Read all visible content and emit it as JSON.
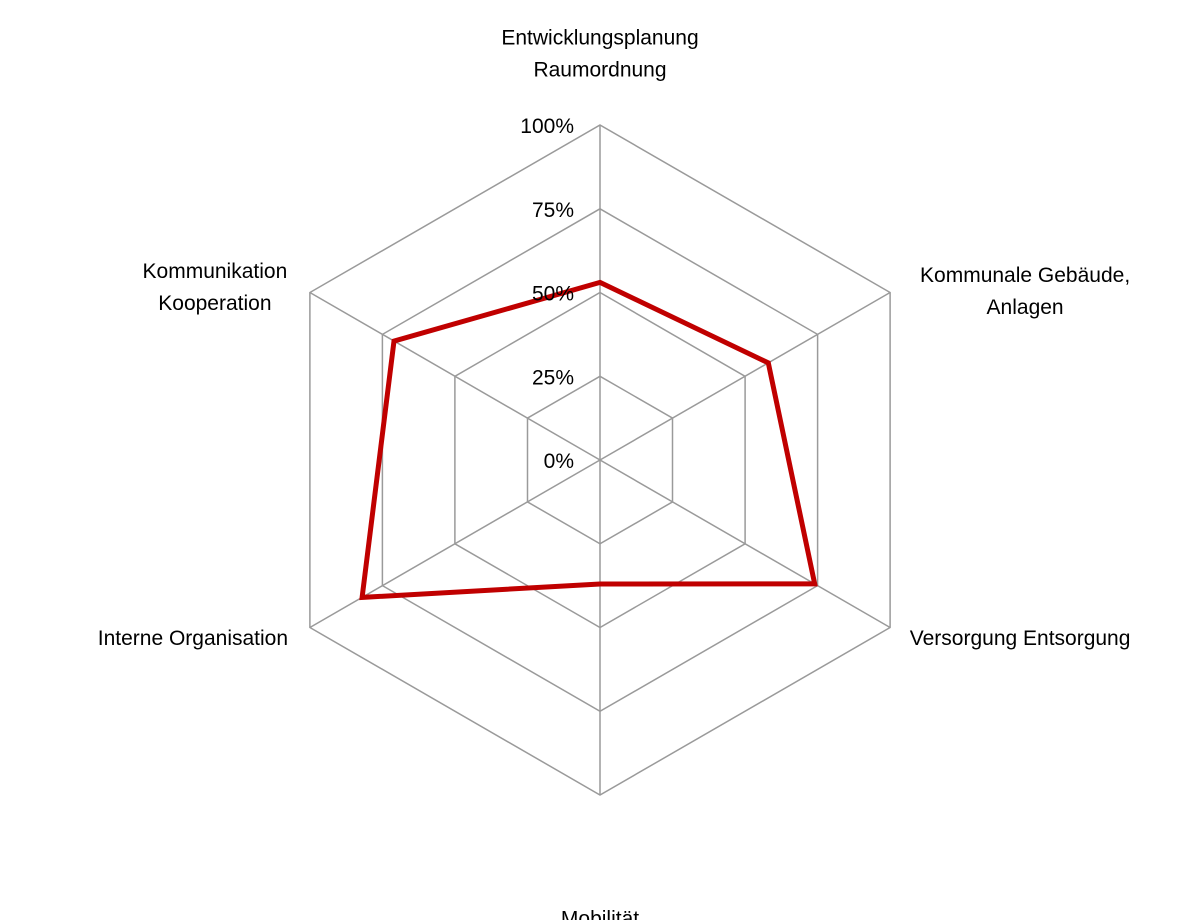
{
  "chart_data": {
    "type": "radar",
    "title": "",
    "axes": [
      [
        "Entwicklungsplanung",
        "Raumordnung"
      ],
      [
        "Kommunale Gebäude,",
        "Anlagen"
      ],
      [
        "Versorgung Entsorgung"
      ],
      [
        "Mobilität"
      ],
      [
        "Interne Organisation"
      ],
      [
        "Kommunikation",
        "Kooperation"
      ]
    ],
    "ticks": [
      "0%",
      "25%",
      "50%",
      "75%",
      "100%"
    ],
    "range": [
      0,
      100
    ],
    "series": [
      {
        "color": "#c00000",
        "values": [
          53,
          58,
          74,
          37,
          82,
          71
        ]
      }
    ],
    "grid": true,
    "legend": "none"
  }
}
